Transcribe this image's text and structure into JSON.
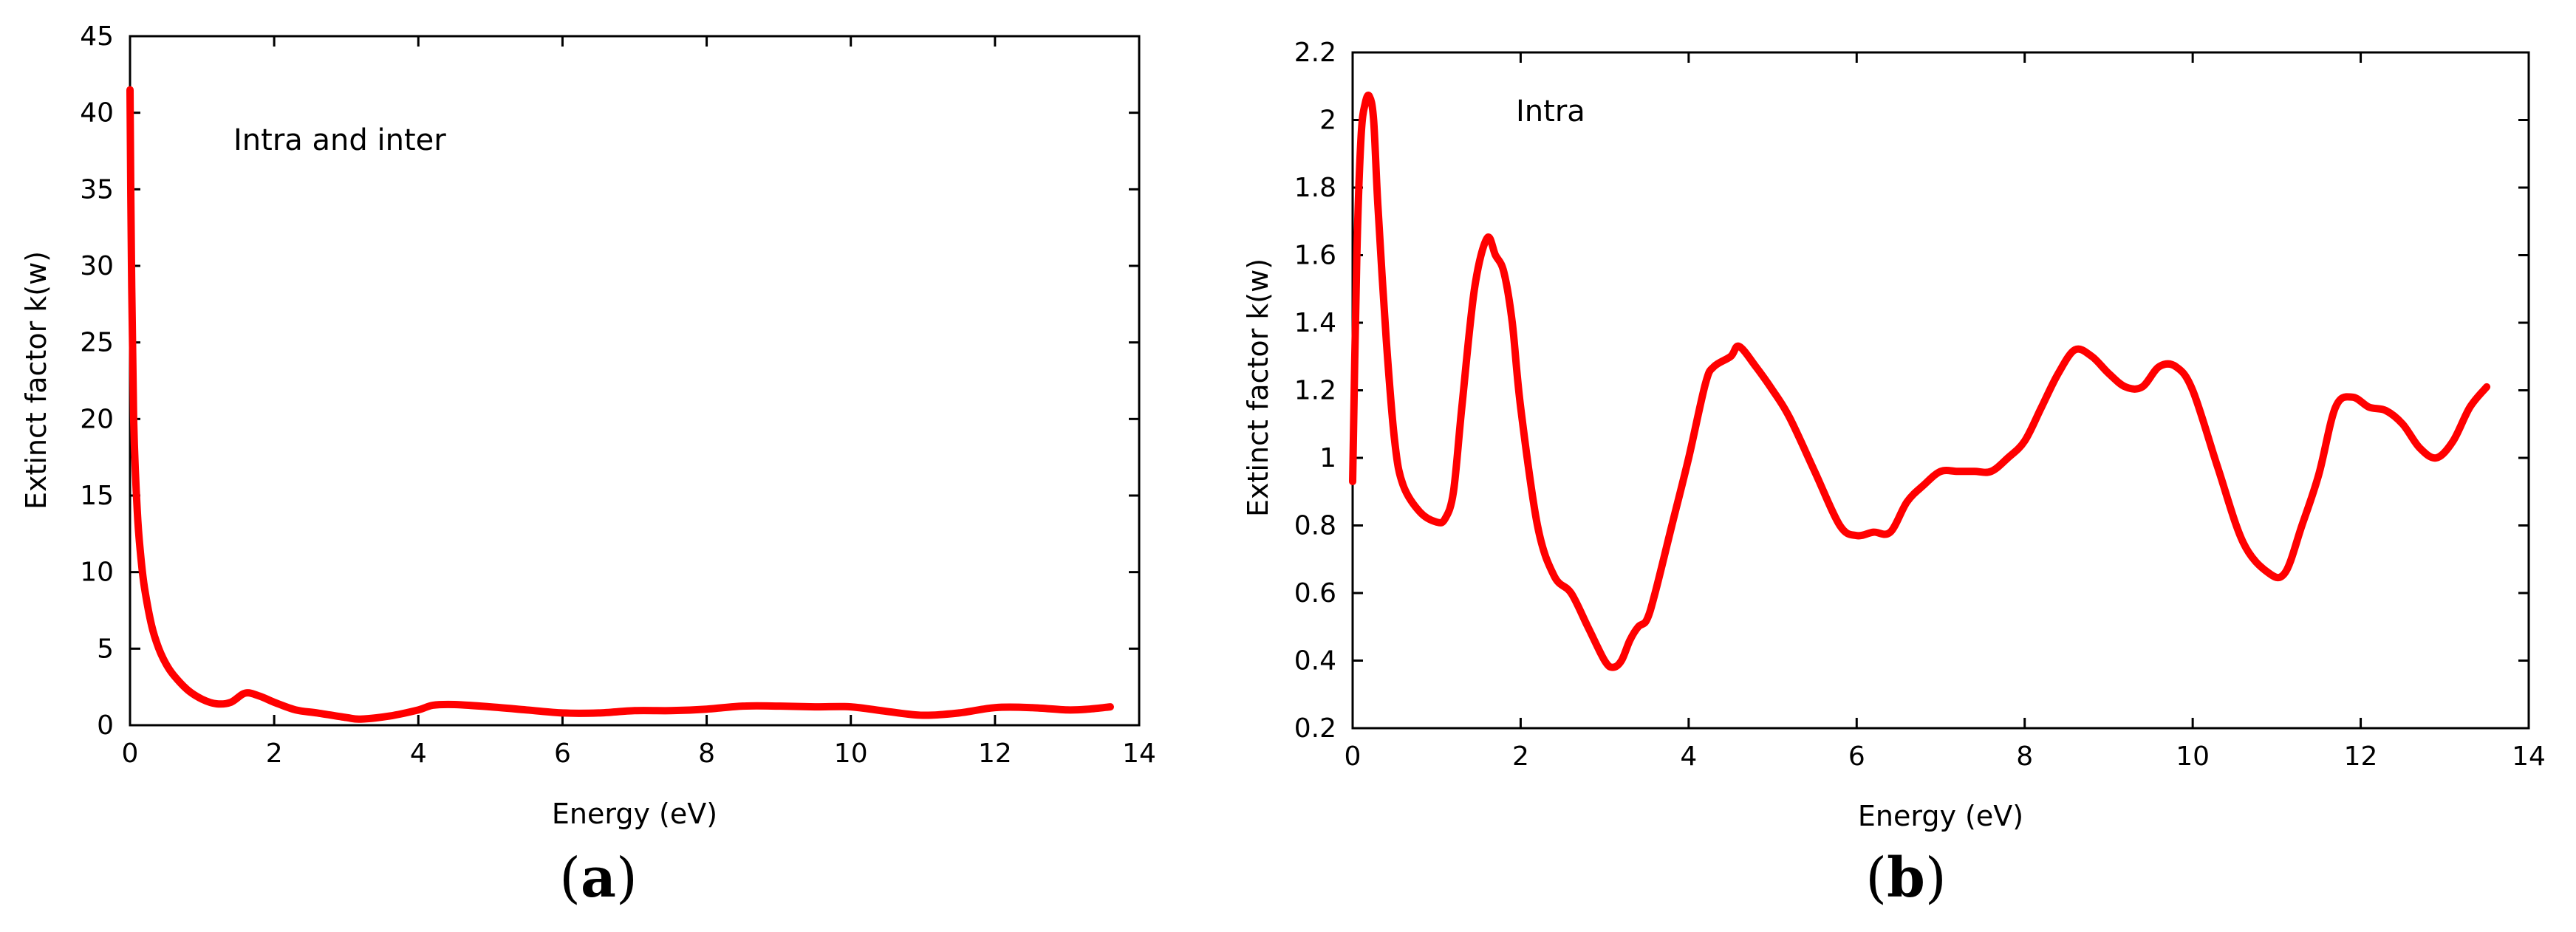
{
  "chart_data": [
    {
      "type": "line",
      "panel_label": "a",
      "annotation": "Intra and inter",
      "xlabel": "Energy (eV)",
      "ylabel": "Extinct factor k(w)",
      "xlim": [
        0,
        14
      ],
      "ylim": [
        0,
        45
      ],
      "xticks": [
        0,
        2,
        4,
        6,
        8,
        10,
        12,
        14
      ],
      "yticks": [
        0,
        5,
        10,
        15,
        20,
        25,
        30,
        35,
        40,
        45
      ],
      "xtick_labels": [
        "0",
        "2",
        "4",
        "6",
        "8",
        "10",
        "12",
        "14"
      ],
      "ytick_labels": [
        "0",
        "5",
        "10",
        "15",
        "20",
        "25",
        "30",
        "35",
        "40",
        "45"
      ],
      "grid": false,
      "line_color": "#ff0000",
      "series": [
        {
          "x": [
            0,
            0.02,
            0.05,
            0.1,
            0.15,
            0.2,
            0.3,
            0.4,
            0.5,
            0.6,
            0.8,
            1.0,
            1.2,
            1.4,
            1.6,
            1.8,
            2.0,
            2.3,
            2.6,
            3.0,
            3.2,
            3.6,
            4.0,
            4.2,
            4.5,
            5.0,
            5.5,
            6.0,
            6.5,
            7.0,
            7.5,
            8.0,
            8.5,
            9.0,
            9.5,
            10.0,
            10.5,
            11.0,
            11.5,
            12.0,
            12.5,
            13.0,
            13.3,
            13.6
          ],
          "y": [
            41.5,
            30,
            20,
            14,
            11,
            9,
            6.5,
            5,
            4,
            3.3,
            2.3,
            1.7,
            1.4,
            1.5,
            2.1,
            1.9,
            1.5,
            1.0,
            0.8,
            0.5,
            0.4,
            0.6,
            1.0,
            1.3,
            1.35,
            1.2,
            1.0,
            0.8,
            0.8,
            0.95,
            0.95,
            1.05,
            1.25,
            1.25,
            1.2,
            1.2,
            0.9,
            0.65,
            0.8,
            1.15,
            1.15,
            1.0,
            1.05,
            1.2
          ]
        }
      ]
    },
    {
      "type": "line",
      "panel_label": "b",
      "annotation": "Intra",
      "xlabel": "Energy (eV)",
      "ylabel": "Extinct factor k(w)",
      "xlim": [
        0,
        14
      ],
      "ylim": [
        0.2,
        2.2
      ],
      "xticks": [
        0,
        2,
        4,
        6,
        8,
        10,
        12,
        14
      ],
      "yticks": [
        0.2,
        0.4,
        0.6,
        0.8,
        1.0,
        1.2,
        1.4,
        1.6,
        1.8,
        2.0,
        2.2
      ],
      "xtick_labels": [
        "0",
        "2",
        "4",
        "6",
        "8",
        "10",
        "12",
        "14"
      ],
      "ytick_labels": [
        "0.2",
        "0.4",
        "0.6",
        "0.8",
        "1",
        "1.2",
        "1.4",
        "1.6",
        "1.8",
        "2",
        "2.2"
      ],
      "grid": false,
      "line_color": "#ff0000",
      "series": [
        {
          "x": [
            0,
            0.05,
            0.1,
            0.15,
            0.2,
            0.25,
            0.3,
            0.4,
            0.5,
            0.6,
            0.8,
            1.0,
            1.1,
            1.2,
            1.3,
            1.45,
            1.6,
            1.7,
            1.8,
            1.9,
            2.0,
            2.2,
            2.4,
            2.6,
            2.8,
            3.0,
            3.1,
            3.2,
            3.3,
            3.4,
            3.5,
            3.6,
            3.8,
            4.0,
            4.2,
            4.3,
            4.5,
            4.6,
            4.8,
            5.0,
            5.2,
            5.5,
            5.8,
            6.0,
            6.2,
            6.4,
            6.6,
            6.8,
            7.0,
            7.2,
            7.4,
            7.6,
            7.8,
            8.0,
            8.2,
            8.4,
            8.6,
            8.8,
            9.0,
            9.2,
            9.4,
            9.6,
            9.8,
            10.0,
            10.3,
            10.6,
            10.9,
            11.1,
            11.3,
            11.5,
            11.7,
            11.9,
            12.1,
            12.3,
            12.5,
            12.7,
            12.9,
            13.1,
            13.3,
            13.5
          ],
          "y": [
            0.93,
            1.6,
            1.95,
            2.05,
            2.07,
            2.0,
            1.75,
            1.35,
            1.05,
            0.92,
            0.84,
            0.81,
            0.82,
            0.9,
            1.15,
            1.5,
            1.65,
            1.6,
            1.55,
            1.4,
            1.15,
            0.8,
            0.65,
            0.6,
            0.5,
            0.4,
            0.38,
            0.4,
            0.46,
            0.5,
            0.52,
            0.6,
            0.8,
            1.0,
            1.22,
            1.27,
            1.3,
            1.33,
            1.27,
            1.2,
            1.12,
            0.96,
            0.8,
            0.77,
            0.78,
            0.78,
            0.87,
            0.92,
            0.96,
            0.96,
            0.96,
            0.96,
            1.0,
            1.05,
            1.15,
            1.25,
            1.32,
            1.3,
            1.25,
            1.21,
            1.21,
            1.27,
            1.27,
            1.2,
            0.97,
            0.75,
            0.66,
            0.66,
            0.8,
            0.95,
            1.15,
            1.18,
            1.15,
            1.14,
            1.1,
            1.03,
            1.0,
            1.05,
            1.15,
            1.21
          ]
        }
      ]
    }
  ]
}
